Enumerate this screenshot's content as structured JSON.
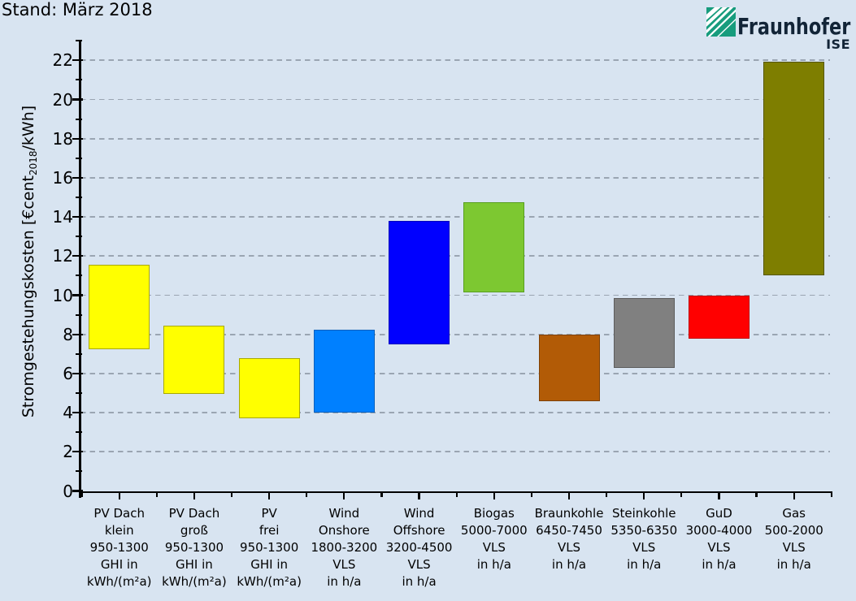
{
  "header": {
    "title": "Stand: März 2018",
    "logo": {
      "brand": "Fraunhofer",
      "institute": "ISE"
    }
  },
  "colors": {
    "background": "#d8e4f1",
    "axis": "#000000",
    "gridline": "#9aa5b2",
    "logo_green": "#179c7d",
    "logo_text": "#122437"
  },
  "chart_data": {
    "type": "bar",
    "variant": "floating-column-ranges",
    "title": "Stand: März 2018",
    "ylabel": "Stromgestehungskosten [€cent2018/kWh]",
    "ylabel_parts": {
      "prefix": "Stromgestehungskosten [€cent",
      "subscript": "2018",
      "suffix": "/kWh]"
    },
    "unit": "€cent2018/kWh",
    "ylim": [
      0,
      23
    ],
    "ytick_labels": [
      "0",
      "2",
      "4",
      "6",
      "8",
      "10",
      "12",
      "14",
      "16",
      "18",
      "20",
      "22"
    ],
    "minor_ticks_at_odd_values": true,
    "grid": "horizontal dashed lines at labeled ticks 2 to 22",
    "legend_position": "none",
    "categories": [
      {
        "key": "pv-dach-klein",
        "name": "PV Dach klein",
        "label_lines": [
          "PV Dach",
          "klein",
          "950-1300",
          "GHI in",
          "kWh/(m²a)"
        ],
        "range_min": 7.23,
        "range_max": 11.54,
        "fill": "#ffff00",
        "stroke": "#a8a800"
      },
      {
        "key": "pv-dach-gross",
        "name": "PV Dach groß",
        "label_lines": [
          "PV Dach",
          "groß",
          "950-1300",
          "GHI in",
          "kWh/(m²a)"
        ],
        "range_min": 4.95,
        "range_max": 8.46,
        "fill": "#ffff00",
        "stroke": "#a8a800"
      },
      {
        "key": "pv-frei",
        "name": "PV frei",
        "label_lines": [
          "PV",
          "frei",
          "950-1300",
          "GHI in",
          "kWh/(m²a)"
        ],
        "range_min": 3.71,
        "range_max": 6.77,
        "fill": "#ffff00",
        "stroke": "#a8a800"
      },
      {
        "key": "wind-onshore",
        "name": "Wind Onshore",
        "label_lines": [
          "Wind",
          "Onshore",
          "1800-3200",
          "VLS",
          "in h/a"
        ],
        "range_min": 3.99,
        "range_max": 8.23,
        "fill": "#0080ff",
        "stroke": "#005fbe"
      },
      {
        "key": "wind-offshore",
        "name": "Wind Offshore",
        "label_lines": [
          "Wind",
          "Offshore",
          "3200-4500",
          "VLS",
          "in h/a"
        ],
        "range_min": 7.49,
        "range_max": 13.79,
        "fill": "#0000ff",
        "stroke": "#0000bc"
      },
      {
        "key": "biogas",
        "name": "Biogas",
        "label_lines": [
          "Biogas",
          "5000-7000",
          "VLS",
          "in h/a"
        ],
        "range_min": 10.14,
        "range_max": 14.74,
        "fill": "#7dc831",
        "stroke": "#589e1f"
      },
      {
        "key": "braunkohle",
        "name": "Braunkohle",
        "label_lines": [
          "Braunkohle",
          "6450-7450",
          "VLS",
          "in h/a"
        ],
        "range_min": 4.59,
        "range_max": 7.98,
        "fill": "#b25b06",
        "stroke": "#7e4004"
      },
      {
        "key": "steinkohle",
        "name": "Steinkohle",
        "label_lines": [
          "Steinkohle",
          "5350-6350",
          "VLS",
          "in h/a"
        ],
        "range_min": 6.27,
        "range_max": 9.86,
        "fill": "#808080",
        "stroke": "#5c5c5c"
      },
      {
        "key": "gud",
        "name": "GuD",
        "label_lines": [
          "GuD",
          "3000-4000",
          "VLS",
          "in h/a"
        ],
        "range_min": 7.78,
        "range_max": 9.96,
        "fill": "#ff0000",
        "stroke": "#c00000"
      },
      {
        "key": "gas",
        "name": "Gas",
        "label_lines": [
          "Gas",
          "500-2000",
          "VLS",
          "in h/a"
        ],
        "range_min": 11.03,
        "range_max": 21.94,
        "fill": "#7e7e00",
        "stroke": "#565600"
      }
    ]
  }
}
